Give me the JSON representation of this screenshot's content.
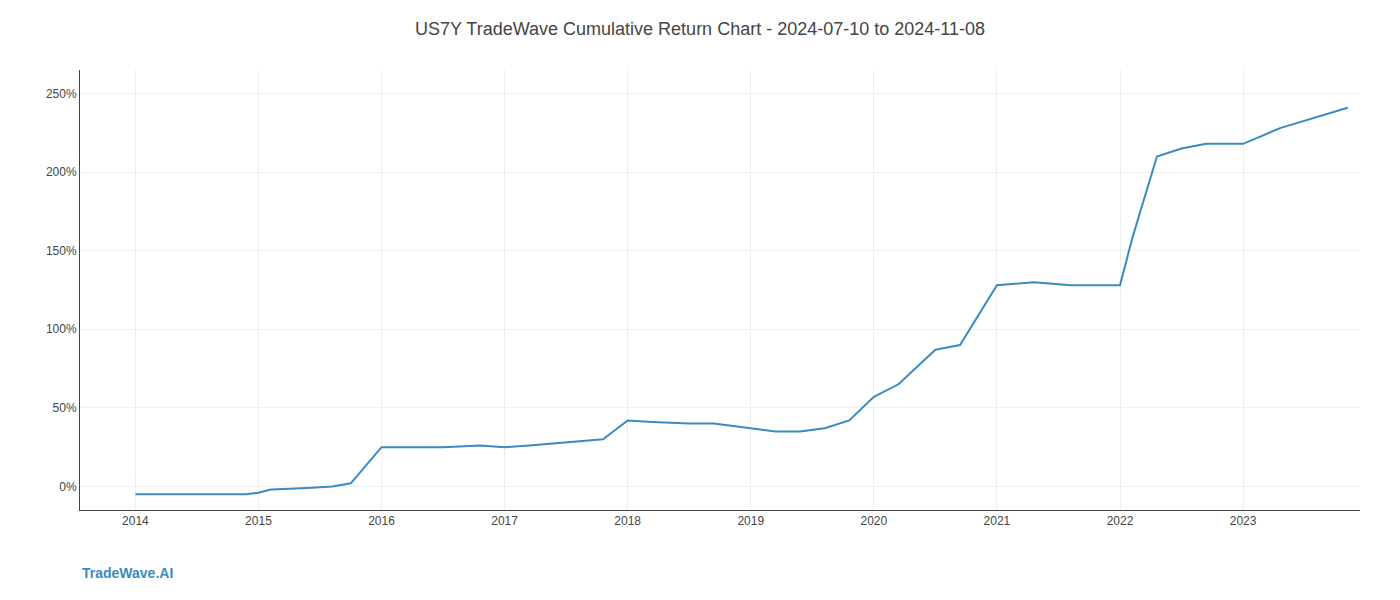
{
  "chart_data": {
    "type": "line",
    "title": "US7Y TradeWave Cumulative Return Chart - 2024-07-10 to 2024-11-08",
    "x": [
      2014.0,
      2014.3,
      2014.6,
      2014.9,
      2015.0,
      2015.1,
      2015.4,
      2015.6,
      2015.75,
      2016.0,
      2016.2,
      2016.5,
      2016.8,
      2017.0,
      2017.2,
      2017.5,
      2017.8,
      2018.0,
      2018.2,
      2018.5,
      2018.7,
      2019.0,
      2019.2,
      2019.4,
      2019.6,
      2019.8,
      2020.0,
      2020.2,
      2020.5,
      2020.7,
      2021.0,
      2021.3,
      2021.6,
      2022.0,
      2022.1,
      2022.3,
      2022.5,
      2022.7,
      2022.9,
      2023.0,
      2023.3,
      2023.6,
      2023.85
    ],
    "values": [
      -5,
      -5,
      -5,
      -5,
      -4,
      -2,
      -1,
      0,
      2,
      25,
      25,
      25,
      26,
      25,
      26,
      28,
      30,
      42,
      41,
      40,
      40,
      37,
      35,
      35,
      37,
      42,
      57,
      65,
      87,
      90,
      128,
      130,
      128,
      128,
      158,
      210,
      215,
      218,
      218,
      218,
      228,
      235,
      241
    ],
    "color": "#3a8bbf",
    "xlim": [
      2013.55,
      2023.95
    ],
    "ylim": [
      -15,
      265
    ],
    "xticks": [
      2014,
      2015,
      2016,
      2017,
      2018,
      2019,
      2020,
      2021,
      2022,
      2023
    ],
    "yticks": [
      {
        "value": 0,
        "label": "0%"
      },
      {
        "value": 50,
        "label": "50%"
      },
      {
        "value": 100,
        "label": "100%"
      },
      {
        "value": 150,
        "label": "150%"
      },
      {
        "value": 200,
        "label": "200%"
      },
      {
        "value": 250,
        "label": "250%"
      }
    ],
    "annotations": [
      {
        "text": "TradeWave.AI",
        "color": "#3a8bbf"
      }
    ],
    "grid": true
  }
}
